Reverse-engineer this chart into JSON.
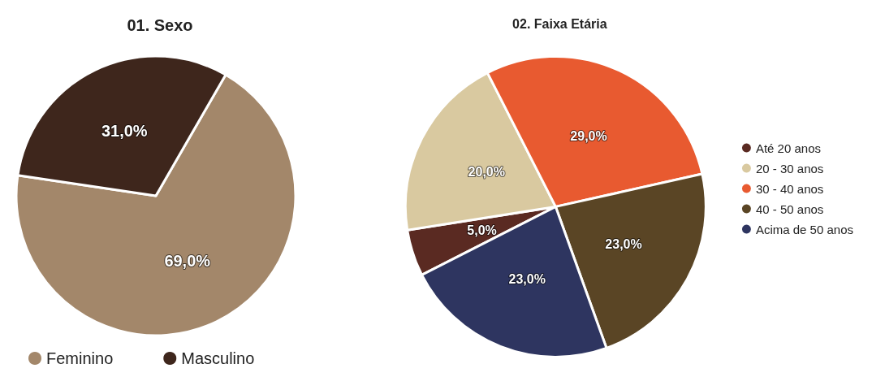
{
  "chart_data": [
    {
      "type": "pie",
      "title": "01. Sexo",
      "categories": [
        "Feminino",
        "Masculino"
      ],
      "values": [
        69,
        31
      ],
      "value_labels": [
        "69,0%",
        "31,0%"
      ],
      "colors": [
        "#a3876a",
        "#3e261c"
      ],
      "legend": "bottom left"
    },
    {
      "type": "pie",
      "title": "02. Faixa Etária",
      "categories": [
        "Até 20 anos",
        "20 - 30 anos",
        "30 - 40 anos",
        "40 - 50 anos",
        "Acima de 50 anos"
      ],
      "values": [
        5,
        20,
        29,
        23,
        23
      ],
      "value_labels": [
        "5,0%",
        "20,0%",
        "29,0%",
        "23,0%",
        "23,0%"
      ],
      "colors": [
        "#5a2a22",
        "#d9c9a0",
        "#e85a30",
        "#5a4525",
        "#2e3560"
      ],
      "legend": "right"
    }
  ]
}
